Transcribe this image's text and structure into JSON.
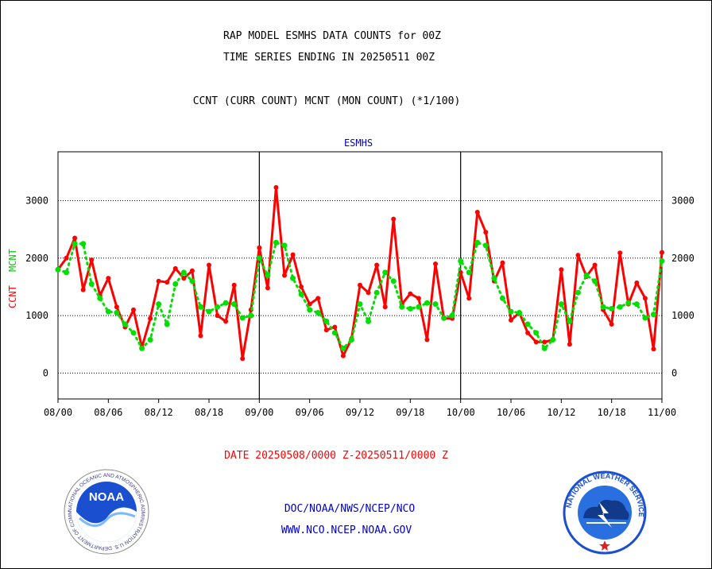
{
  "header": {
    "title_line1": "RAP MODEL ESMHS DATA COUNTS for 00Z",
    "title_line2": "TIME SERIES ENDING IN 20250511 00Z",
    "subtitle": "CCNT (CURR COUNT) MCNT (MON COUNT) (*1/100)"
  },
  "chart_data": {
    "type": "line",
    "title": "ESMHS",
    "ylabel_curr": "CCNT",
    "ylabel_mon": "MCNT",
    "ylim": [
      -450,
      3850
    ],
    "yticks": [
      0,
      1000,
      2000,
      3000
    ],
    "xlim": [
      0,
      72
    ],
    "xticks": [
      {
        "x": 0,
        "label": "08/00"
      },
      {
        "x": 6,
        "label": "08/06"
      },
      {
        "x": 12,
        "label": "08/12"
      },
      {
        "x": 18,
        "label": "08/18"
      },
      {
        "x": 24,
        "label": "09/00"
      },
      {
        "x": 30,
        "label": "09/06"
      },
      {
        "x": 36,
        "label": "09/12"
      },
      {
        "x": 42,
        "label": "09/18"
      },
      {
        "x": 48,
        "label": "10/00"
      },
      {
        "x": 54,
        "label": "10/06"
      },
      {
        "x": 60,
        "label": "10/12"
      },
      {
        "x": 66,
        "label": "10/18"
      },
      {
        "x": 72,
        "label": "11/00"
      }
    ],
    "day_boundaries": [
      24,
      48
    ],
    "grid": true,
    "series": [
      {
        "name": "CCNT",
        "color": "#ff0000",
        "style": "solid",
        "values": [
          1800,
          2000,
          2350,
          1450,
          1970,
          1350,
          1650,
          1150,
          800,
          1100,
          450,
          950,
          1600,
          1580,
          1820,
          1650,
          1780,
          650,
          1880,
          1000,
          900,
          1530,
          250,
          1100,
          2180,
          1480,
          3230,
          1700,
          2060,
          1500,
          1200,
          1300,
          750,
          800,
          300,
          600,
          1530,
          1400,
          1880,
          1150,
          2680,
          1200,
          1380,
          1300,
          580,
          1900,
          950,
          950,
          1750,
          1300,
          2800,
          2450,
          1600,
          1920,
          920,
          1050,
          700,
          540,
          540,
          580,
          1800,
          500,
          2050,
          1680,
          1880,
          1100,
          850,
          2090,
          1200,
          1570,
          1300,
          420,
          2100
        ]
      },
      {
        "name": "MCNT",
        "color": "#00e000",
        "style": "dotted",
        "values": [
          1800,
          1750,
          2250,
          2250,
          1550,
          1300,
          1070,
          1050,
          850,
          700,
          430,
          580,
          1200,
          850,
          1550,
          1750,
          1600,
          1150,
          1070,
          1150,
          1220,
          1200,
          960,
          1000,
          2000,
          1700,
          2270,
          2220,
          1650,
          1370,
          1100,
          1050,
          900,
          700,
          430,
          580,
          1200,
          900,
          1400,
          1750,
          1600,
          1150,
          1120,
          1150,
          1220,
          1200,
          960,
          1000,
          1950,
          1750,
          2270,
          2220,
          1650,
          1300,
          1070,
          1050,
          850,
          700,
          430,
          580,
          1200,
          900,
          1400,
          1700,
          1600,
          1150,
          1120,
          1150,
          1220,
          1200,
          960,
          1020,
          1950
        ]
      }
    ]
  },
  "footer": {
    "date_range": "DATE 20250508/0000 Z-20250511/0000 Z",
    "org_path": "DOC/NOAA/NWS/NCEP/NCO",
    "website": "WWW.NCO.NCEP.NOAA.GOV"
  },
  "logos": {
    "noaa_text": "NOAA",
    "noaa_ring": "NATIONAL OCEANIC AND ATMOSPHERIC ADMINISTRATION  U.S. DEPARTMENT OF COMMERCE",
    "nws_ring": "NATIONAL WEATHER SERVICE"
  },
  "colors": {
    "axis": "#000000",
    "title_blue": "#0000cc",
    "ccnt_red": "#ff0000",
    "mcnt_green": "#00e000"
  }
}
